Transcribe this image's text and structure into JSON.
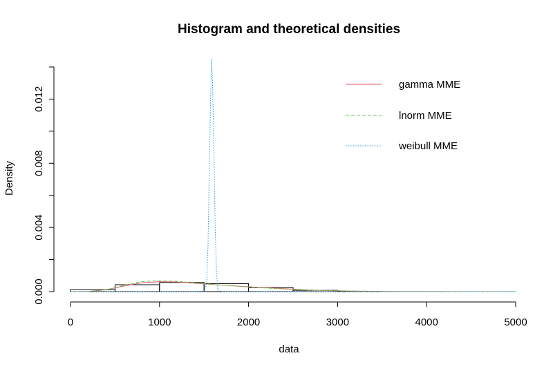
{
  "chart_data": {
    "type": "histogram",
    "title": "Histogram and theoretical densities",
    "xlabel": "data",
    "ylabel": "Density",
    "xlim": [
      0,
      5000
    ],
    "ylim": [
      0,
      0.0143
    ],
    "x_ticks": [
      {
        "value": 0,
        "label": "0"
      },
      {
        "value": 1000,
        "label": "1000"
      },
      {
        "value": 2000,
        "label": "2000"
      },
      {
        "value": 3000,
        "label": "3000"
      },
      {
        "value": 4000,
        "label": "4000"
      },
      {
        "value": 5000,
        "label": "5000"
      }
    ],
    "y_ticks": [
      {
        "value": 0,
        "label": "0.000"
      },
      {
        "value": 0.002,
        "label": ""
      },
      {
        "value": 0.004,
        "label": "0.004"
      },
      {
        "value": 0.006,
        "label": ""
      },
      {
        "value": 0.008,
        "label": "0.008"
      },
      {
        "value": 0.01,
        "label": ""
      },
      {
        "value": 0.012,
        "label": "0.012"
      },
      {
        "value": 0.014,
        "label": ""
      }
    ],
    "bins": [
      {
        "start": 0,
        "end": 500,
        "density": 0.00012
      },
      {
        "start": 500,
        "end": 1000,
        "density": 0.00043
      },
      {
        "start": 1000,
        "end": 1500,
        "density": 0.00057
      },
      {
        "start": 1500,
        "end": 2000,
        "density": 0.0005
      },
      {
        "start": 2000,
        "end": 2500,
        "density": 0.00025
      },
      {
        "start": 2500,
        "end": 3000,
        "density": 8e-05
      },
      {
        "start": 3000,
        "end": 3500,
        "density": 2e-05
      }
    ],
    "series": [
      {
        "name": "gamma MME",
        "color": "#DF536B",
        "dash": "solid",
        "x": [
          0,
          200,
          400,
          600,
          800,
          1000,
          1200,
          1400,
          1600,
          1800,
          2000,
          2200,
          2400,
          2600,
          2800,
          3000,
          3200,
          3600,
          4000,
          4500,
          5000
        ],
        "y": [
          0,
          1.5e-05,
          0.00012,
          0.00035,
          0.00055,
          0.00062,
          0.0006,
          0.00052,
          0.00044,
          0.00037,
          0.0003,
          0.00024,
          0.00018,
          0.00012,
          8e-05,
          5e-05,
          3e-05,
          1e-05,
          3e-06,
          1e-06,
          0
        ]
      },
      {
        "name": "lnorm MME",
        "color": "#61D04F",
        "dash": "dashed",
        "x": [
          0,
          200,
          400,
          600,
          800,
          1000,
          1200,
          1400,
          1600,
          1800,
          2000,
          2200,
          2400,
          2600,
          2800,
          3000,
          3200,
          3600,
          4000,
          4500,
          5000
        ],
        "y": [
          0,
          5e-06,
          0.0001,
          0.0004,
          0.00062,
          0.00068,
          0.00064,
          0.00055,
          0.00045,
          0.00036,
          0.00028,
          0.00022,
          0.00016,
          0.00011,
          8e-05,
          5e-05,
          3e-05,
          1e-05,
          5e-06,
          2e-06,
          0
        ]
      },
      {
        "name": "weibull MME",
        "color": "#2297E6",
        "dash": "dotted",
        "x": [
          0,
          1400,
          1500,
          1530,
          1545,
          1560,
          1575,
          1585,
          1595,
          1610,
          1625,
          1640,
          1655,
          1700,
          2000,
          5000
        ],
        "y": [
          0,
          0,
          2e-05,
          0.0006,
          0.003,
          0.008,
          0.0125,
          0.0145,
          0.013,
          0.009,
          0.004,
          0.0012,
          0.0001,
          0,
          0,
          0
        ]
      }
    ],
    "legend": {
      "position": "top-right",
      "box": false
    }
  }
}
